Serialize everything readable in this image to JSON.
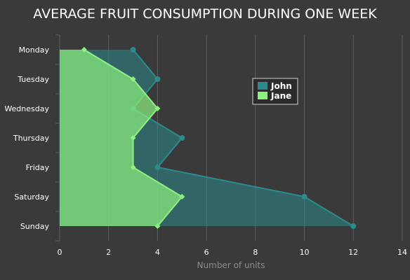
{
  "chart_data": {
    "type": "area",
    "orientation": "horizontal",
    "title": "AVERAGE FRUIT CONSUMPTION DURING ONE WEEK",
    "xlabel": "Number of units",
    "ylabel": "",
    "categories": [
      "Monday",
      "Tuesday",
      "Wednesday",
      "Thursday",
      "Friday",
      "Saturday",
      "Sunday"
    ],
    "xlim": [
      0,
      14
    ],
    "xticks": [
      "0",
      "2",
      "4",
      "6",
      "8",
      "10",
      "12",
      "14"
    ],
    "grid": "vertical",
    "legend_position": "top-right",
    "series": [
      {
        "name": "John",
        "values": [
          3,
          4,
          3,
          5,
          4,
          10,
          12
        ],
        "color": "#2b8a8a"
      },
      {
        "name": "Jane",
        "values": [
          1,
          3,
          4,
          3,
          3,
          5,
          4
        ],
        "color": "#8cf27f"
      }
    ],
    "colors": {
      "background": "#3a3a3a",
      "grid": "#5e5e5e",
      "title": "#ffffff",
      "axis_label": "#8c8c8c"
    }
  }
}
